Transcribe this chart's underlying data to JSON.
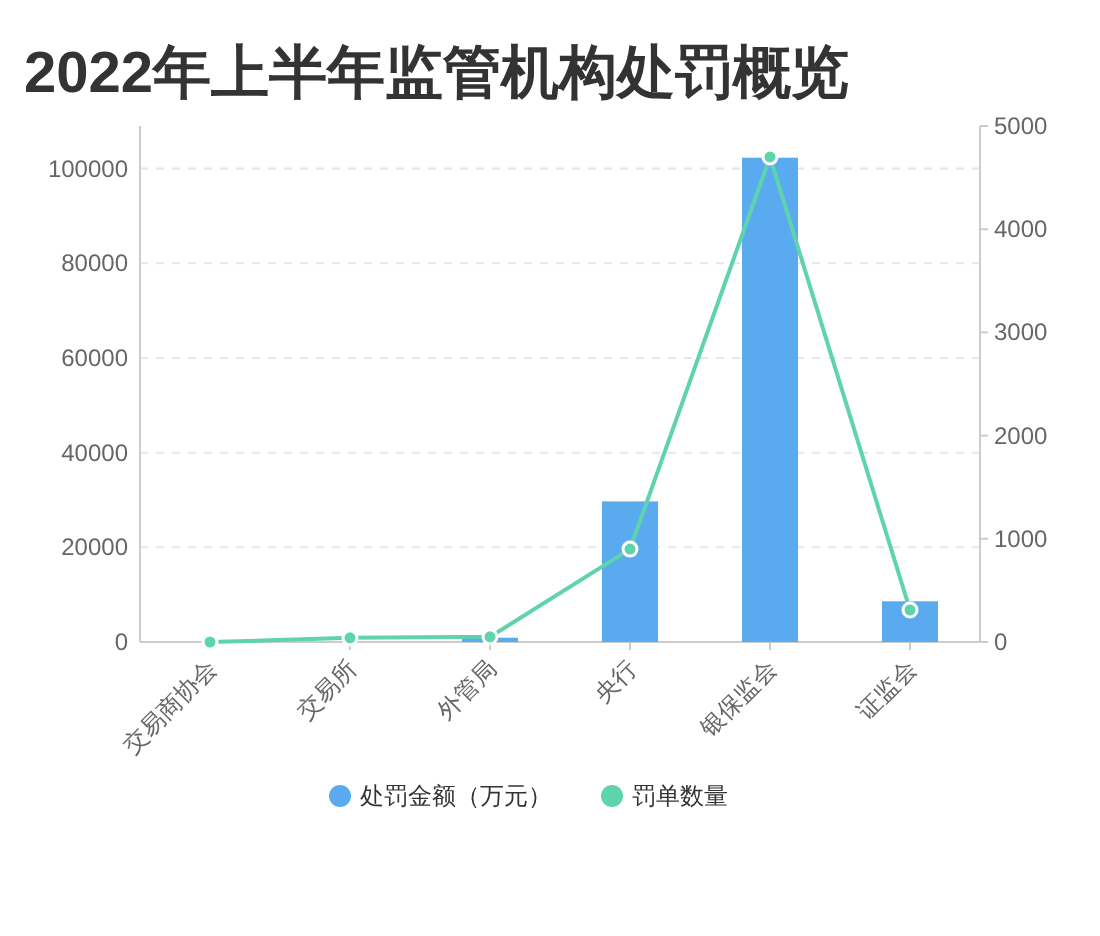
{
  "chart_data": {
    "type": "bar",
    "title": "2022年上半年监管机构处罚概览",
    "categories": [
      "交易商协会",
      "交易所",
      "外管局",
      "央行",
      "银保监会",
      "证监会"
    ],
    "series": [
      {
        "name": "处罚金额（万元）",
        "color": "#5aaaf0",
        "values": [
          0,
          0,
          900,
          29700,
          102300,
          8600
        ]
      },
      {
        "name": "罚单数量",
        "type": "line",
        "axis": "y2",
        "color": "#5fd3ae",
        "values": [
          0,
          40,
          50,
          900,
          4700,
          310
        ]
      }
    ],
    "ylim": [
      0,
      109000
    ],
    "yticks": [
      0,
      20000,
      40000,
      60000,
      80000,
      100000
    ],
    "y2lim": [
      0,
      5000
    ],
    "y2ticks": [
      0,
      1000,
      2000,
      3000,
      4000,
      5000
    ],
    "grid": "y",
    "legend": "bottom",
    "marker": "circle"
  }
}
